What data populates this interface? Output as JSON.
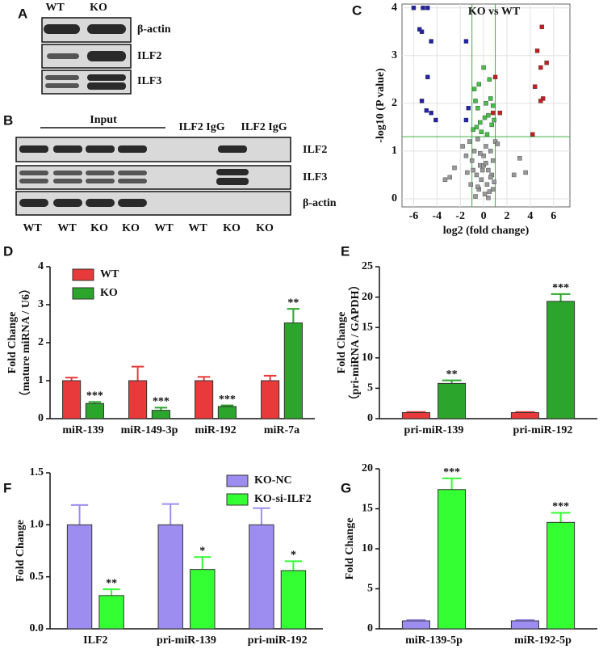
{
  "panel_labels": [
    "A",
    "B",
    "C",
    "D",
    "E",
    "F",
    "G"
  ],
  "blot_a": {
    "columns": [
      "WT",
      "KO"
    ],
    "rows": [
      "β-actin",
      "ILF2",
      "ILF3"
    ]
  },
  "blot_b": {
    "group_label": "Input",
    "headers": [
      "ILF2 IgG",
      "ILF2 IgG"
    ],
    "rows": [
      "ILF2",
      "ILF3",
      "β-actin"
    ],
    "lanes": [
      "WT",
      "WT",
      "KO",
      "KO",
      "WT",
      "WT",
      "KO",
      "KO"
    ]
  },
  "chart_data": [
    {
      "type": "scatter",
      "annotation": "KO vs WT",
      "xlabel": "log2 (fold change)",
      "ylabel": "-log10 (P value)",
      "xlim": [
        -7,
        7.4
      ],
      "ylim": [
        -0.17,
        4.08
      ],
      "xticks": [
        -6,
        -4,
        -2,
        0,
        2,
        4,
        6
      ],
      "yticks": [
        0,
        1,
        2,
        3,
        4
      ],
      "grid": true,
      "thresholds": {
        "x": [
          -1,
          1
        ],
        "y": 1.3,
        "color": "#3cb043"
      },
      "series": [
        {
          "color": "#2222aa",
          "x": [
            -6,
            -5.2,
            -4.8,
            -5.5,
            -5.3,
            -4.5,
            -1.5,
            -4.8,
            -5.3,
            -4.9,
            -4.5,
            -4.1,
            -1.3,
            -1.5
          ],
          "y": [
            4.0,
            4.0,
            4.0,
            3.55,
            3.5,
            3.3,
            3.3,
            2.55,
            2.05,
            1.85,
            1.8,
            1.65,
            1.9,
            1.65
          ]
        },
        {
          "color": "#c42020",
          "x": [
            5.0,
            4.6,
            5.4,
            4.9,
            4.4,
            5.1,
            4.9,
            1.0,
            1.4,
            4.2,
            0.8
          ],
          "y": [
            3.6,
            3.1,
            2.85,
            2.75,
            2.35,
            2.1,
            2.05,
            2.55,
            1.8,
            1.35,
            1.8
          ]
        },
        {
          "color": "#44c044",
          "x": [
            -0.9,
            -0.6,
            -0.3,
            0.1,
            0.4,
            0.7,
            -0.5,
            0.2,
            0.6,
            -0.8,
            0.0,
            0.5,
            -0.2,
            0.3,
            -0.7,
            0.8,
            -0.4,
            0.9
          ],
          "y": [
            1.45,
            1.5,
            1.6,
            1.7,
            1.75,
            1.55,
            1.9,
            2.0,
            2.1,
            2.3,
            2.75,
            2.5,
            1.4,
            1.35,
            2.05,
            1.95,
            2.4,
            1.65
          ]
        },
        {
          "color": "#999999",
          "x": [
            -1.8,
            -1.5,
            -1.2,
            -1.0,
            -0.8,
            -0.5,
            -0.3,
            0,
            0.2,
            0.4,
            0.6,
            0.8,
            1.0,
            -0.6,
            -0.2,
            0.3,
            0.7,
            -0.9,
            -0.4,
            0.1,
            0.5,
            0.9,
            -1.4,
            -0.7,
            0.0,
            0.6,
            -2.5,
            -2.9,
            -3.3,
            2.6,
            3.1,
            3.6,
            -0.3,
            0.2,
            -0.5,
            0.4,
            -1.1,
            1.2,
            -0.1,
            0.8
          ],
          "y": [
            1.1,
            0.9,
            1.2,
            0.8,
            1.0,
            1.25,
            0.7,
            0.9,
            1.1,
            0.6,
            1.0,
            0.8,
            1.2,
            0.5,
            0.4,
            0.3,
            0.5,
            0.6,
            0.2,
            0.1,
            0.15,
            0.35,
            0.55,
            0.05,
            0.7,
            0.45,
            0.65,
            0.45,
            0.4,
            0.5,
            0.85,
            0.55,
            0.95,
            0.75,
            0.25,
            0.02,
            0.3,
            1.15,
            0.6,
            0.2
          ]
        }
      ]
    },
    {
      "type": "bar",
      "ylabel": [
        "Fold   Change",
        "（mature miRNA / U6）"
      ],
      "categories": [
        "miR-139",
        "miR-149-3p",
        "miR-192",
        "miR-7a"
      ],
      "ylim": [
        0,
        4
      ],
      "yticks": [
        0,
        1,
        2,
        3,
        4
      ],
      "legend": "upper left",
      "series": [
        {
          "name": "WT",
          "color": "#e83a3a",
          "values": [
            1,
            1,
            1,
            1
          ],
          "errors": [
            0.08,
            0.37,
            0.1,
            0.13
          ]
        },
        {
          "name": "KO",
          "color": "#2ba52b",
          "values": [
            0.4,
            0.22,
            0.32,
            2.52
          ],
          "errors": [
            0.04,
            0.07,
            0.03,
            0.37
          ]
        }
      ],
      "significance": [
        "***",
        "***",
        "***",
        "**"
      ]
    },
    {
      "type": "bar",
      "ylabel": [
        "Fold   Change",
        "（pri-miRNA / GAPDH）"
      ],
      "categories": [
        "pri-miR-139",
        "pri-miR-192"
      ],
      "ylim": [
        0,
        25
      ],
      "yticks": [
        0,
        5,
        10,
        15,
        20,
        25
      ],
      "series": [
        {
          "color": "#e83a3a",
          "values": [
            1,
            1
          ],
          "errors": [
            0.1,
            0.1
          ]
        },
        {
          "color": "#2ba52b",
          "values": [
            5.8,
            19.3
          ],
          "errors": [
            0.5,
            1.2
          ]
        }
      ],
      "significance": [
        "**",
        "***"
      ]
    },
    {
      "type": "bar",
      "ylabel": [
        "Fold   Change"
      ],
      "categories": [
        "ILF2",
        "pri-miR-139",
        "pri-miR-192"
      ],
      "ylim": [
        0,
        1.5
      ],
      "yticks": [
        {
          "value": 0,
          "label": "0.0"
        },
        0.5,
        {
          "value": 1,
          "label": "1.0"
        },
        1.5
      ],
      "legend": "upper center",
      "series": [
        {
          "name": "KO-NC",
          "color": "#9d8df1",
          "values": [
            1,
            1,
            1
          ],
          "errors": [
            0.19,
            0.2,
            0.16
          ]
        },
        {
          "name": "KO-si-ILF2",
          "color": "#33ff33",
          "values": [
            0.32,
            0.57,
            0.56
          ],
          "errors": [
            0.06,
            0.12,
            0.09
          ]
        }
      ],
      "significance": [
        "**",
        "*",
        "*"
      ]
    },
    {
      "type": "bar",
      "ylabel": [
        "Fold   Change"
      ],
      "categories": [
        "miR-139-5p",
        "miR-192-5p"
      ],
      "ylim": [
        0,
        20
      ],
      "yticks": [
        0,
        5,
        10,
        15,
        20
      ],
      "series": [
        {
          "color": "#9d8df1",
          "values": [
            1,
            1
          ],
          "errors": [
            0.1,
            0.1
          ]
        },
        {
          "color": "#33ff33",
          "values": [
            17.4,
            13.3
          ],
          "errors": [
            1.4,
            1.2
          ]
        }
      ],
      "significance": [
        "***",
        "***"
      ]
    }
  ]
}
